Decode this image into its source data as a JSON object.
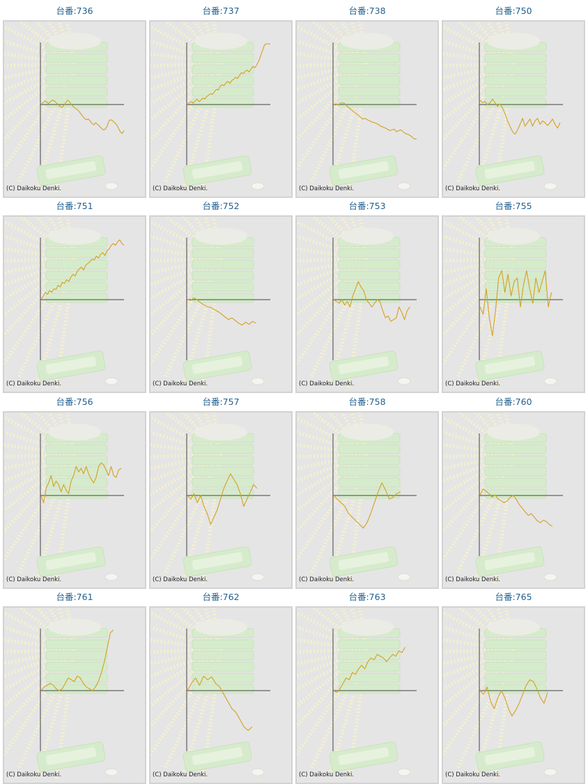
{
  "copyright": "(C) Daikoku Denki.",
  "colors": {
    "line": "#d4a020",
    "axis": "#444444",
    "frame": "#d2d2d2",
    "background": "#e5e5e5",
    "title": "#1f5f8f"
  },
  "chart_data": [
    {
      "type": "line",
      "title": "台番:736",
      "values": [
        0,
        0.05,
        0.1,
        0.07,
        0.03,
        0.08,
        0.12,
        0.1,
        0.05,
        0,
        -0.05,
        -0.08,
        -0.03,
        0.05,
        0.12,
        0.08,
        0,
        -0.05,
        -0.1,
        -0.13,
        -0.18,
        -0.25,
        -0.32,
        -0.38,
        -0.42,
        -0.4,
        -0.45,
        -0.52,
        -0.56,
        -0.5,
        -0.55,
        -0.6,
        -0.65,
        -0.7,
        -0.68,
        -0.6,
        -0.45,
        -0.42,
        -0.45,
        -0.5,
        -0.55,
        -0.65,
        -0.75,
        -0.8,
        -0.72
      ]
    },
    {
      "type": "line",
      "title": "台番:737",
      "values": [
        0,
        0.05,
        0.08,
        0.04,
        0.1,
        0.15,
        0.08,
        0.12,
        0.18,
        0.15,
        0.22,
        0.26,
        0.3,
        0.28,
        0.35,
        0.42,
        0.4,
        0.5,
        0.55,
        0.52,
        0.6,
        0.64,
        0.58,
        0.66,
        0.7,
        0.75,
        0.72,
        0.8,
        0.88,
        0.85,
        0.92,
        0.95,
        0.9,
        0.98,
        1.05,
        1.02,
        1.1,
        1.2,
        1.35,
        1.5,
        1.65,
        1.75,
        1.85,
        1.9
      ]
    },
    {
      "type": "line",
      "title": "台番:738",
      "values": [
        0,
        0.02,
        -0.02,
        0.03,
        0.05,
        0.02,
        -0.05,
        -0.1,
        -0.15,
        -0.2,
        -0.25,
        -0.3,
        -0.35,
        -0.4,
        -0.38,
        -0.42,
        -0.45,
        -0.48,
        -0.5,
        -0.52,
        -0.55,
        -0.6,
        -0.62,
        -0.65,
        -0.68,
        -0.72,
        -0.7,
        -0.68,
        -0.75,
        -0.72,
        -0.7,
        -0.75,
        -0.8,
        -0.82,
        -0.85,
        -0.9,
        -0.95,
        -0.95
      ]
    },
    {
      "type": "line",
      "title": "台番:750",
      "values": [
        0.12,
        0.05,
        0.08,
        0,
        0.05,
        0.15,
        0.05,
        -0.05,
        0.02,
        -0.1,
        -0.25,
        -0.45,
        -0.6,
        -0.75,
        -0.82,
        -0.7,
        -0.55,
        -0.38,
        -0.6,
        -0.5,
        -0.4,
        -0.6,
        -0.45,
        -0.38,
        -0.55,
        -0.45,
        -0.5,
        -0.58,
        -0.5,
        -0.4,
        -0.55,
        -0.65,
        -0.5
      ]
    },
    {
      "type": "line",
      "title": "台番:751",
      "values": [
        0,
        0.1,
        0.2,
        0.15,
        0.25,
        0.2,
        0.3,
        0.28,
        0.4,
        0.35,
        0.48,
        0.45,
        0.55,
        0.5,
        0.62,
        0.7,
        0.65,
        0.78,
        0.85,
        0.9,
        0.82,
        0.95,
        1.0,
        1.05,
        1.12,
        1.1,
        1.2,
        1.15,
        1.25,
        1.3,
        1.22,
        1.35,
        1.4,
        1.5,
        1.55,
        1.5,
        1.6,
        1.65,
        1.55,
        1.5
      ]
    },
    {
      "type": "line",
      "title": "台番:752",
      "values": [
        0,
        -0.02,
        0.05,
        -0.02,
        -0.1,
        -0.15,
        -0.2,
        -0.22,
        -0.28,
        -0.33,
        -0.4,
        -0.48,
        -0.55,
        -0.5,
        -0.58,
        -0.65,
        -0.7,
        -0.62,
        -0.68,
        -0.6,
        -0.65
      ]
    },
    {
      "type": "line",
      "title": "台番:753",
      "values": [
        0,
        -0.05,
        -0.1,
        0,
        -0.15,
        -0.05,
        -0.2,
        0.1,
        0.3,
        0.5,
        0.35,
        0.25,
        0,
        -0.1,
        -0.2,
        -0.1,
        0,
        -0.05,
        -0.3,
        -0.5,
        -0.45,
        -0.6,
        -0.55,
        -0.5,
        -0.2,
        -0.35,
        -0.55,
        -0.3,
        -0.2
      ]
    },
    {
      "type": "line",
      "title": "台番:755",
      "values": [
        -0.2,
        -0.4,
        0.3,
        -0.5,
        -1.0,
        -0.3,
        0.6,
        0.8,
        0.2,
        0.7,
        0.1,
        0.5,
        0.6,
        -0.2,
        0.4,
        0.8,
        0.3,
        -0.1,
        0.6,
        0.2,
        0.5,
        0.8,
        -0.2,
        0.2
      ]
    },
    {
      "type": "line",
      "title": "台番:756",
      "values": [
        0,
        -0.2,
        0.2,
        0.35,
        0.55,
        0.25,
        0.4,
        0.3,
        0.1,
        0.3,
        0.15,
        0.05,
        0.4,
        0.55,
        0.8,
        0.65,
        0.75,
        0.6,
        0.8,
        0.6,
        0.45,
        0.35,
        0.5,
        0.8,
        0.9,
        0.85,
        0.7,
        0.55,
        0.8,
        0.55,
        0.5,
        0.7,
        0.75
      ]
    },
    {
      "type": "line",
      "title": "台番:757",
      "values": [
        0,
        -0.1,
        0.05,
        -0.2,
        0,
        -0.3,
        -0.5,
        -0.8,
        -0.6,
        -0.4,
        -0.1,
        0.2,
        0.4,
        0.6,
        0.45,
        0.3,
        0.05,
        -0.3,
        -0.1,
        0.1,
        0.3,
        0.2
      ]
    },
    {
      "type": "line",
      "title": "台番:758",
      "values": [
        0,
        -0.1,
        -0.2,
        -0.3,
        -0.5,
        -0.6,
        -0.7,
        -0.8,
        -0.9,
        -0.75,
        -0.5,
        -0.2,
        0.1,
        0.35,
        0.15,
        -0.1,
        -0.05,
        0.05,
        0.1
      ]
    },
    {
      "type": "line",
      "title": "台番:760",
      "values": [
        0,
        0.18,
        0.12,
        0.05,
        -0.05,
        0.02,
        -0.1,
        -0.15,
        -0.2,
        -0.15,
        -0.05,
        0,
        -0.1,
        -0.25,
        -0.35,
        -0.45,
        -0.55,
        -0.5,
        -0.6,
        -0.7,
        -0.75,
        -0.68,
        -0.72,
        -0.8,
        -0.85
      ]
    },
    {
      "type": "line",
      "title": "台番:761",
      "values": [
        0,
        0.1,
        0.15,
        0.2,
        0.15,
        0.05,
        0,
        0.05,
        0.2,
        0.35,
        0.3,
        0.25,
        0.4,
        0.35,
        0.2,
        0.1,
        0.05,
        0,
        0.1,
        0.25,
        0.5,
        0.8,
        1.2,
        1.6,
        1.85
      ]
    },
    {
      "type": "line",
      "title": "台番:762",
      "values": [
        0,
        0.2,
        0.35,
        0.15,
        0.4,
        0.3,
        0.38,
        0.2,
        0.1,
        -0.1,
        -0.3,
        -0.5,
        -0.6,
        -0.8,
        -1.0,
        -1.1,
        -1.0
      ]
    },
    {
      "type": "line",
      "title": "台番:763",
      "values": [
        0,
        -0.05,
        0.05,
        0.2,
        0.35,
        0.3,
        0.5,
        0.45,
        0.6,
        0.7,
        0.6,
        0.8,
        0.9,
        0.85,
        1.0,
        0.95,
        0.9,
        0.8,
        0.9,
        1.0,
        0.95,
        1.1,
        1.05,
        1.2
      ]
    },
    {
      "type": "line",
      "title": "台番:765",
      "values": [
        0,
        -0.1,
        0.1,
        -0.3,
        -0.5,
        -0.2,
        0,
        -0.2,
        -0.5,
        -0.7,
        -0.55,
        -0.35,
        -0.1,
        0.15,
        0.3,
        0.25,
        0.05,
        -0.2,
        -0.35,
        -0.05
      ]
    }
  ]
}
